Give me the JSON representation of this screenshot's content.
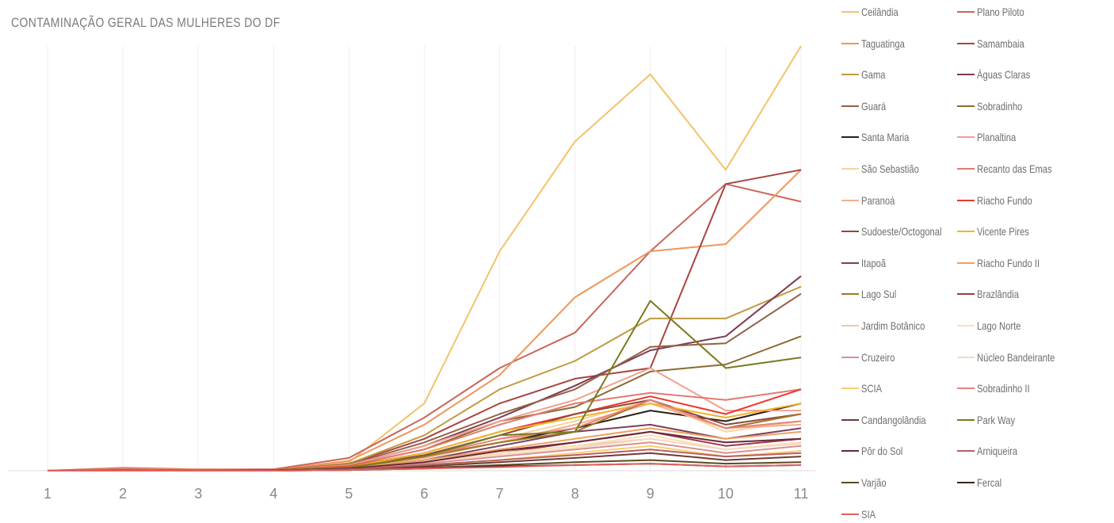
{
  "chart_data": {
    "type": "line",
    "title": "CONTAMINAÇÃO GERAL DAS MULHERES DO DF",
    "xlabel": "",
    "ylabel": "",
    "x": [
      "1",
      "2",
      "3",
      "4",
      "5",
      "6",
      "7",
      "8",
      "9",
      "10",
      "11"
    ],
    "ylim": [
      0,
      600
    ],
    "grid": "vertical",
    "legend": "right",
    "series": [
      {
        "name": "Ceilândia",
        "color": "#f2c36b",
        "values": [
          0,
          2,
          1,
          1,
          12,
          95,
          310,
          465,
          560,
          425,
          600
        ]
      },
      {
        "name": "Plano Piloto",
        "color": "#c9655c",
        "values": [
          0,
          4,
          2,
          2,
          18,
          75,
          145,
          195,
          310,
          405,
          380
        ]
      },
      {
        "name": "Taguatinga",
        "color": "#f0955a",
        "values": [
          0,
          3,
          2,
          1,
          14,
          65,
          135,
          245,
          310,
          320,
          425
        ]
      },
      {
        "name": "Samambaia",
        "color": "#a84440",
        "values": [
          0,
          2,
          1,
          1,
          10,
          45,
          95,
          130,
          145,
          405,
          425
        ]
      },
      {
        "name": "Gama",
        "color": "#c09a40",
        "values": [
          0,
          2,
          1,
          1,
          10,
          50,
          115,
          155,
          215,
          215,
          260
        ]
      },
      {
        "name": "Águas Claras",
        "color": "#7d3b4f",
        "values": [
          0,
          1,
          1,
          1,
          8,
          35,
          75,
          120,
          170,
          190,
          275
        ]
      },
      {
        "name": "Guará",
        "color": "#946045",
        "values": [
          0,
          2,
          1,
          1,
          9,
          40,
          80,
          115,
          175,
          180,
          250
        ]
      },
      {
        "name": "Sobradinho",
        "color": "#8a6a30",
        "values": [
          0,
          1,
          1,
          1,
          7,
          30,
          70,
          90,
          140,
          150,
          190
        ]
      },
      {
        "name": "Santa Maria",
        "color": "#2b1e16",
        "values": [
          0,
          1,
          1,
          1,
          5,
          20,
          40,
          60,
          85,
          70,
          95
        ]
      },
      {
        "name": "Planaltina",
        "color": "#f0a08e",
        "values": [
          0,
          2,
          1,
          1,
          8,
          35,
          70,
          100,
          145,
          85,
          85
        ]
      },
      {
        "name": "São Sebastião",
        "color": "#f7d5a0",
        "values": [
          0,
          1,
          1,
          1,
          5,
          20,
          45,
          70,
          100,
          55,
          70
        ]
      },
      {
        "name": "Recanto das Emas",
        "color": "#e07a72",
        "values": [
          0,
          2,
          1,
          1,
          7,
          30,
          65,
          95,
          110,
          100,
          115
        ]
      },
      {
        "name": "Paranoá",
        "color": "#f3b08a",
        "values": [
          0,
          1,
          0,
          1,
          4,
          18,
          40,
          65,
          95,
          60,
          65
        ]
      },
      {
        "name": "Riacho Fundo",
        "color": "#e8392c",
        "values": [
          0,
          1,
          1,
          1,
          6,
          25,
          55,
          80,
          105,
          80,
          115
        ]
      },
      {
        "name": "Sudoeste/Octogonal",
        "color": "#8d4a3c",
        "values": [
          0,
          1,
          1,
          1,
          5,
          22,
          50,
          80,
          100,
          65,
          80
        ]
      },
      {
        "name": "Vicente Pires",
        "color": "#f2b52a",
        "values": [
          0,
          1,
          1,
          1,
          5,
          25,
          55,
          75,
          95,
          75,
          95
        ]
      },
      {
        "name": "Itapoã",
        "color": "#7a4060",
        "values": [
          0,
          1,
          0,
          1,
          4,
          15,
          35,
          55,
          65,
          45,
          60
        ]
      },
      {
        "name": "Riacho Fundo II",
        "color": "#f0a060",
        "values": [
          0,
          1,
          0,
          1,
          4,
          15,
          30,
          45,
          60,
          45,
          55
        ]
      },
      {
        "name": "Lago Sul",
        "color": "#a07820",
        "values": [
          0,
          1,
          1,
          1,
          5,
          20,
          40,
          55,
          100,
          60,
          80
        ]
      },
      {
        "name": "Brazlândia",
        "color": "#9b3a4a",
        "values": [
          0,
          1,
          0,
          1,
          3,
          12,
          25,
          40,
          55,
          35,
          45
        ]
      },
      {
        "name": "Jardim Botânico",
        "color": "#efc8a8",
        "values": [
          0,
          1,
          0,
          0,
          3,
          10,
          25,
          35,
          45,
          30,
          40
        ]
      },
      {
        "name": "Lago Norte",
        "color": "#fbe0b0",
        "values": [
          0,
          1,
          0,
          0,
          3,
          12,
          25,
          35,
          50,
          30,
          40
        ]
      },
      {
        "name": "Cruzeiro",
        "color": "#d89090",
        "values": [
          0,
          1,
          0,
          0,
          3,
          10,
          20,
          30,
          40,
          25,
          35
        ]
      },
      {
        "name": "Núcleo Bandeirante",
        "color": "#f6d8c8",
        "values": [
          0,
          1,
          0,
          0,
          3,
          12,
          22,
          32,
          45,
          30,
          38
        ]
      },
      {
        "name": "SCIA",
        "color": "#f8cf70",
        "values": [
          0,
          1,
          0,
          0,
          2,
          8,
          15,
          25,
          35,
          20,
          28
        ]
      },
      {
        "name": "Sobradinho II",
        "color": "#e88080",
        "values": [
          0,
          1,
          0,
          0,
          4,
          20,
          45,
          60,
          100,
          60,
          70
        ]
      },
      {
        "name": "Candangolândia",
        "color": "#6e3a36",
        "values": [
          0,
          0,
          0,
          0,
          2,
          6,
          12,
          18,
          25,
          15,
          20
        ]
      },
      {
        "name": "Park Way",
        "color": "#7a7a20",
        "values": [
          0,
          1,
          0,
          0,
          4,
          20,
          50,
          55,
          240,
          145,
          160
        ]
      },
      {
        "name": "Pôr do Sol",
        "color": "#6a2838",
        "values": [
          0,
          1,
          0,
          0,
          3,
          12,
          28,
          40,
          55,
          40,
          45
        ]
      },
      {
        "name": "Arniqueira",
        "color": "#b86060",
        "values": [
          0,
          1,
          0,
          0,
          2,
          8,
          15,
          22,
          30,
          20,
          25
        ]
      },
      {
        "name": "Varjão",
        "color": "#5a4a20",
        "values": [
          0,
          0,
          0,
          0,
          1,
          4,
          8,
          12,
          15,
          10,
          12
        ]
      },
      {
        "name": "Fercal",
        "color": "#3a2418",
        "values": [
          0,
          0,
          0,
          0,
          1,
          3,
          6,
          8,
          10,
          6,
          8
        ]
      },
      {
        "name": "SIA",
        "color": "#e06060",
        "values": [
          0,
          0,
          0,
          0,
          1,
          3,
          5,
          8,
          10,
          6,
          8
        ]
      }
    ]
  }
}
